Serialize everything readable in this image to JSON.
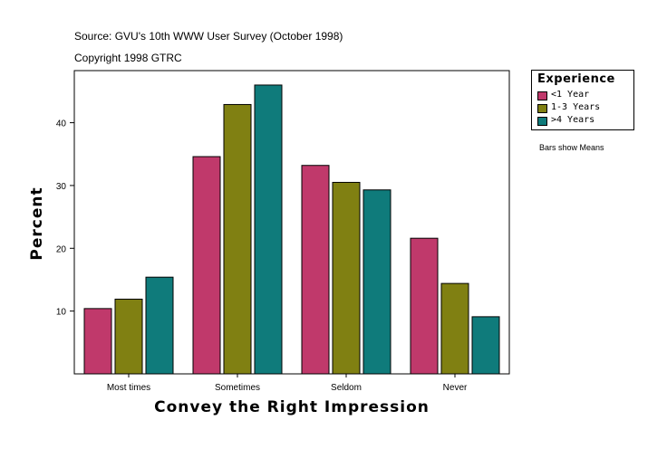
{
  "header": {
    "source": "Source: GVU's 10th WWW User Survey (October 1998)",
    "copyright": "Copyright 1998 GTRC"
  },
  "note": "Bars show Means",
  "chart_data": {
    "type": "bar",
    "title": "",
    "xlabel": "Convey the Right Impression",
    "ylabel": "Percent",
    "categories": [
      "Most times",
      "Sometimes",
      "Seldom",
      "Never"
    ],
    "yticks": [
      10,
      20,
      30,
      40
    ],
    "ylim": [
      0,
      48.3
    ],
    "legend_title": "Experience",
    "legend_position": "top-right",
    "grid": false,
    "series": [
      {
        "name": "<1 Year",
        "color": "#c0396b",
        "values": [
          10.4,
          34.6,
          33.2,
          21.6
        ]
      },
      {
        "name": "1-3 Years",
        "color": "#808012",
        "values": [
          11.9,
          42.9,
          30.5,
          14.4
        ]
      },
      {
        "name": ">4 Years",
        "color": "#0f7b7b",
        "values": [
          15.4,
          46.0,
          29.3,
          9.1
        ]
      }
    ]
  }
}
